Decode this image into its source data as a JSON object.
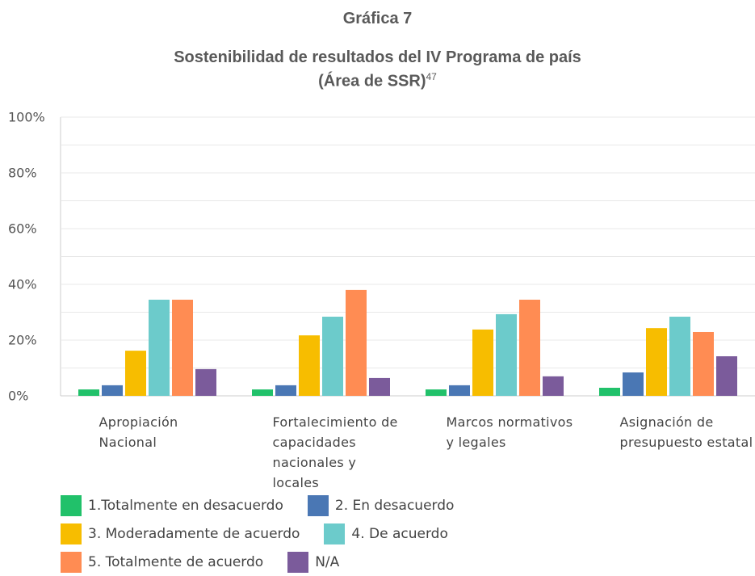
{
  "chart_data": {
    "type": "bar",
    "title": "Gráfica 7",
    "subtitle": [
      "Sostenibilidad de resultados del IV Programa de país",
      "(Área de SSR)"
    ],
    "subtitle_note": "47",
    "categories": [
      "Apropiación Nacional",
      "Fortalecimiento de capacidades nacionales y locales",
      "Marcos normativos y legales",
      "Asignación de presupuesto estatal"
    ],
    "series": [
      {
        "name": "1.Totalmente en desacuerdo",
        "color": "#21c16a",
        "values": [
          2.3,
          2.3,
          2.3,
          2.9
        ]
      },
      {
        "name": "2. En desacuerdo",
        "color": "#4a77b4",
        "values": [
          3.8,
          3.8,
          3.8,
          8.4
        ]
      },
      {
        "name": "3. Moderadamente de acuerdo",
        "color": "#f7bd00",
        "values": [
          16.2,
          21.7,
          23.8,
          24.3
        ]
      },
      {
        "name": "4. De acuerdo",
        "color": "#6ccbcb",
        "values": [
          34.5,
          28.4,
          29.3,
          28.4
        ]
      },
      {
        "name": "5. Totalmente de acuerdo",
        "color": "#ff8c53",
        "values": [
          34.5,
          38,
          34.5,
          22.9
        ]
      },
      {
        "name": "N/A",
        "color": "#7b5b9b",
        "values": [
          9.6,
          6.4,
          7,
          14.2
        ]
      }
    ],
    "ylim": [
      0,
      100
    ],
    "yticks": [
      {
        "value": 0,
        "label": "0%"
      },
      {
        "value": 20,
        "label": "20%"
      },
      {
        "value": 40,
        "label": "40%"
      },
      {
        "value": 60,
        "label": "60%"
      },
      {
        "value": 80,
        "label": "80%"
      },
      {
        "value": 100,
        "label": "100%"
      }
    ],
    "minor_yticks": [
      10,
      30,
      50,
      70,
      90
    ],
    "grid": true
  }
}
